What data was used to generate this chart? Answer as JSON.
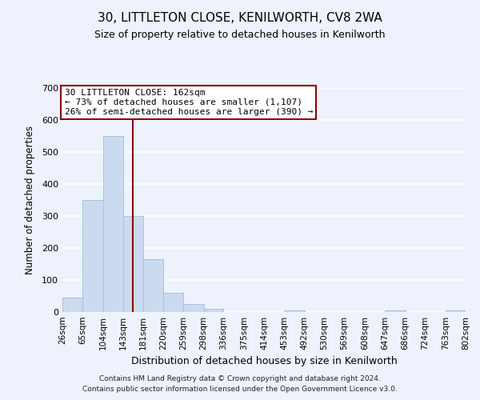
{
  "title": "30, LITTLETON CLOSE, KENILWORTH, CV8 2WA",
  "subtitle": "Size of property relative to detached houses in Kenilworth",
  "xlabel": "Distribution of detached houses by size in Kenilworth",
  "ylabel": "Number of detached properties",
  "bar_edges": [
    26,
    65,
    104,
    143,
    181,
    220,
    259,
    298,
    336,
    375,
    414,
    453,
    492,
    530,
    569,
    608,
    647,
    686,
    724,
    763,
    802
  ],
  "bar_heights": [
    45,
    350,
    550,
    300,
    165,
    60,
    25,
    10,
    0,
    0,
    0,
    5,
    0,
    0,
    0,
    0,
    5,
    0,
    0,
    5
  ],
  "bar_color": "#ccdaf0",
  "bar_edgecolor": "#a8c0e0",
  "vline_x": 162,
  "vline_color": "#8b0000",
  "ylim": [
    0,
    700
  ],
  "yticks": [
    0,
    100,
    200,
    300,
    400,
    500,
    600,
    700
  ],
  "annotation_title": "30 LITTLETON CLOSE: 162sqm",
  "annotation_line1": "← 73% of detached houses are smaller (1,107)",
  "annotation_line2": "26% of semi-detached houses are larger (390) →",
  "annotation_box_facecolor": "#ffffff",
  "annotation_box_edgecolor": "#8b0000",
  "footer_line1": "Contains HM Land Registry data © Crown copyright and database right 2024.",
  "footer_line2": "Contains public sector information licensed under the Open Government Licence v3.0.",
  "background_color": "#edf2fc",
  "grid_color": "#ffffff",
  "tick_labels": [
    "26sqm",
    "65sqm",
    "104sqm",
    "143sqm",
    "181sqm",
    "220sqm",
    "259sqm",
    "298sqm",
    "336sqm",
    "375sqm",
    "414sqm",
    "453sqm",
    "492sqm",
    "530sqm",
    "569sqm",
    "608sqm",
    "647sqm",
    "686sqm",
    "724sqm",
    "763sqm",
    "802sqm"
  ]
}
